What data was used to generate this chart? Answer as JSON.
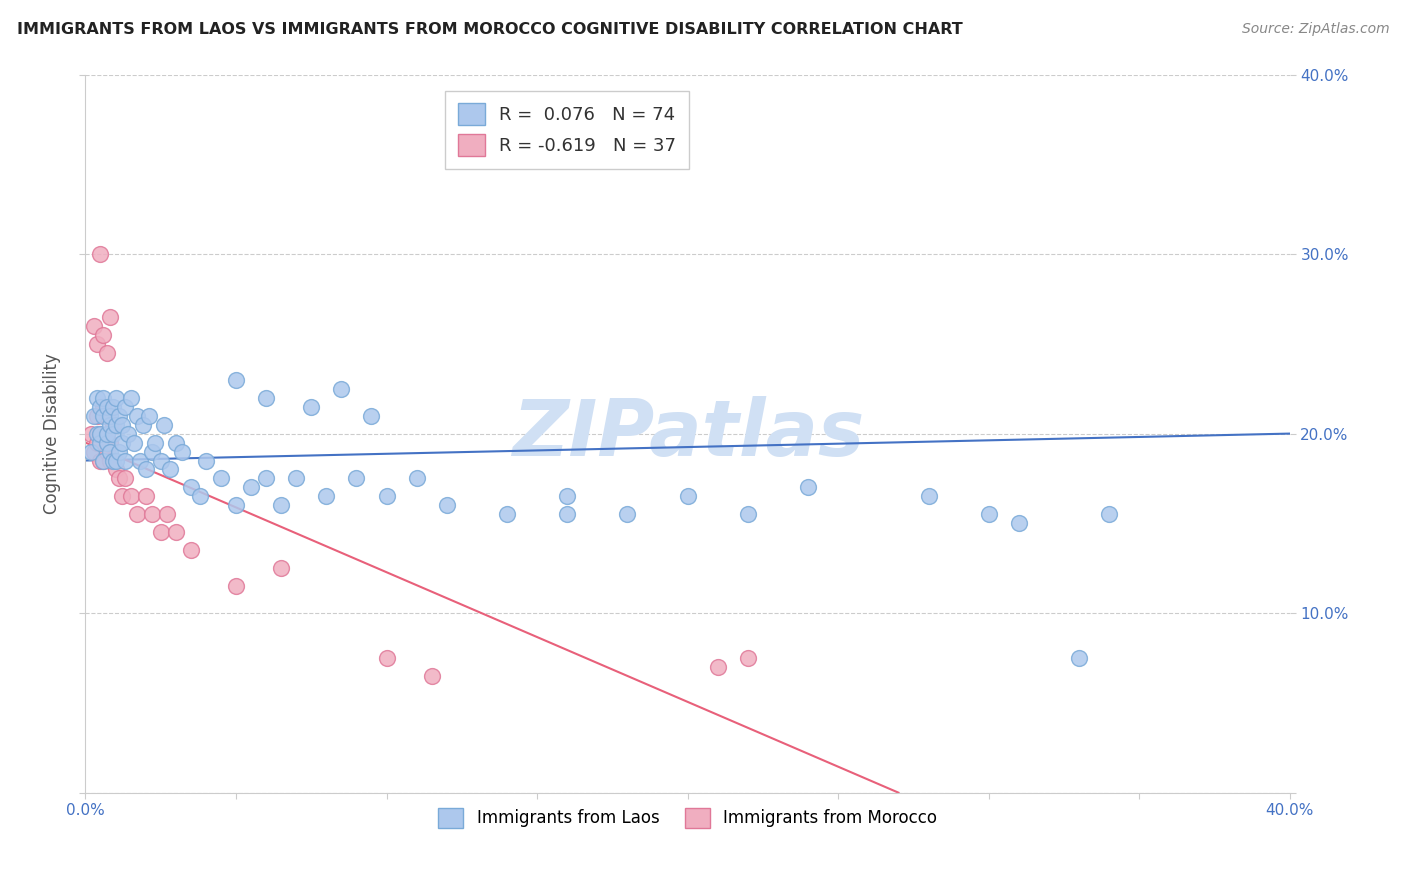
{
  "title": "IMMIGRANTS FROM LAOS VS IMMIGRANTS FROM MOROCCO COGNITIVE DISABILITY CORRELATION CHART",
  "source": "Source: ZipAtlas.com",
  "ylabel": "Cognitive Disability",
  "xlim": [
    0.0,
    0.4
  ],
  "ylim": [
    0.0,
    0.4
  ],
  "background_color": "#ffffff",
  "grid_color": "#cccccc",
  "laos_color": "#adc8ed",
  "laos_edge_color": "#7aaad8",
  "morocco_color": "#f0aec0",
  "morocco_edge_color": "#e07898",
  "laos_line_color": "#4472c4",
  "morocco_line_color": "#e8607a",
  "watermark_color": "#d0e0f4",
  "legend_R_laos": "R =  0.076",
  "legend_N_laos": "N = 74",
  "legend_R_morocco": "R = -0.619",
  "legend_N_morocco": "N = 37",
  "laos_x": [
    0.002,
    0.003,
    0.004,
    0.004,
    0.005,
    0.005,
    0.005,
    0.006,
    0.006,
    0.006,
    0.007,
    0.007,
    0.007,
    0.008,
    0.008,
    0.008,
    0.009,
    0.009,
    0.009,
    0.01,
    0.01,
    0.01,
    0.011,
    0.011,
    0.012,
    0.012,
    0.013,
    0.013,
    0.014,
    0.015,
    0.016,
    0.017,
    0.018,
    0.019,
    0.02,
    0.021,
    0.022,
    0.023,
    0.025,
    0.026,
    0.028,
    0.03,
    0.032,
    0.035,
    0.038,
    0.04,
    0.045,
    0.05,
    0.055,
    0.06,
    0.065,
    0.07,
    0.08,
    0.09,
    0.1,
    0.11,
    0.12,
    0.14,
    0.16,
    0.18,
    0.2,
    0.22,
    0.24,
    0.05,
    0.06,
    0.075,
    0.085,
    0.095,
    0.16,
    0.3,
    0.31,
    0.33,
    0.34,
    0.28
  ],
  "laos_y": [
    0.19,
    0.21,
    0.2,
    0.22,
    0.195,
    0.2,
    0.215,
    0.185,
    0.21,
    0.22,
    0.195,
    0.2,
    0.215,
    0.19,
    0.205,
    0.21,
    0.185,
    0.2,
    0.215,
    0.185,
    0.205,
    0.22,
    0.19,
    0.21,
    0.195,
    0.205,
    0.185,
    0.215,
    0.2,
    0.22,
    0.195,
    0.21,
    0.185,
    0.205,
    0.18,
    0.21,
    0.19,
    0.195,
    0.185,
    0.205,
    0.18,
    0.195,
    0.19,
    0.17,
    0.165,
    0.185,
    0.175,
    0.16,
    0.17,
    0.175,
    0.16,
    0.175,
    0.165,
    0.175,
    0.165,
    0.175,
    0.16,
    0.155,
    0.165,
    0.155,
    0.165,
    0.155,
    0.17,
    0.23,
    0.22,
    0.215,
    0.225,
    0.21,
    0.155,
    0.155,
    0.15,
    0.075,
    0.155,
    0.165
  ],
  "morocco_x": [
    0.002,
    0.003,
    0.004,
    0.004,
    0.005,
    0.005,
    0.006,
    0.006,
    0.007,
    0.007,
    0.008,
    0.008,
    0.009,
    0.01,
    0.011,
    0.012,
    0.013,
    0.015,
    0.017,
    0.02,
    0.022,
    0.025,
    0.027,
    0.03,
    0.035,
    0.05,
    0.065,
    0.1,
    0.115,
    0.003,
    0.004,
    0.005,
    0.006,
    0.007,
    0.008,
    0.21,
    0.22
  ],
  "morocco_y": [
    0.2,
    0.19,
    0.21,
    0.195,
    0.185,
    0.2,
    0.215,
    0.185,
    0.19,
    0.21,
    0.195,
    0.185,
    0.205,
    0.18,
    0.175,
    0.165,
    0.175,
    0.165,
    0.155,
    0.165,
    0.155,
    0.145,
    0.155,
    0.145,
    0.135,
    0.115,
    0.125,
    0.075,
    0.065,
    0.26,
    0.25,
    0.3,
    0.255,
    0.245,
    0.265,
    0.07,
    0.075
  ]
}
